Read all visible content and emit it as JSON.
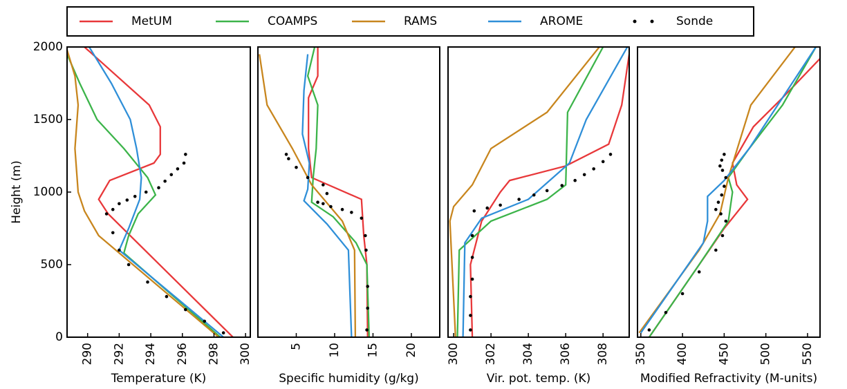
{
  "chart_data": [
    {
      "type": "line",
      "xlabel": "Temperature (K)",
      "ylabel": "Height (m)",
      "xlim": [
        288.7,
        300.3
      ],
      "xticks": [
        290,
        292,
        294,
        296,
        298,
        300
      ],
      "ylim": [
        0,
        2000
      ],
      "yticks": [
        0,
        500,
        1000,
        1500,
        2000
      ],
      "series": [
        {
          "name": "MetUM",
          "color": "#e8383a",
          "x": [
            299.2,
            291.3,
            290.7,
            291.4,
            294.2,
            294.6,
            294.6,
            293.9,
            289.8
          ],
          "y": [
            0,
            850,
            950,
            1080,
            1200,
            1260,
            1450,
            1600,
            2000
          ]
        },
        {
          "name": "COAMPS",
          "color": "#3cb44a",
          "x": [
            298.4,
            292.3,
            292.6,
            293.2,
            294.3,
            293.8,
            292.3,
            290.6,
            289.5,
            288.7
          ],
          "y": [
            0,
            580,
            700,
            850,
            980,
            1100,
            1300,
            1500,
            1750,
            1950
          ]
        },
        {
          "name": "RAMS",
          "color": "#c8861e",
          "x": [
            298.3,
            290.7,
            289.8,
            289.4,
            289.2,
            289.4,
            289.2,
            288.7
          ],
          "y": [
            0,
            700,
            870,
            1000,
            1300,
            1600,
            1800,
            1980
          ]
        },
        {
          "name": "AROME",
          "color": "#2f8fd8",
          "x": [
            298.6,
            292.0,
            292.6,
            293.3,
            293.4,
            293.1,
            292.7,
            291.5,
            290.1
          ],
          "y": [
            0,
            600,
            750,
            950,
            1100,
            1300,
            1500,
            1750,
            2000
          ]
        },
        {
          "name": "Sonde",
          "color": "#000000",
          "mode": "points",
          "x": [
            298.6,
            297.4,
            296.2,
            295.0,
            293.8,
            292.6,
            292.0,
            291.6,
            291.2,
            291.6,
            292.0,
            292.5,
            293.0,
            293.7,
            294.5,
            294.9,
            295.3,
            295.7,
            296.1,
            296.2
          ],
          "y": [
            30,
            110,
            190,
            280,
            380,
            500,
            600,
            720,
            850,
            880,
            920,
            945,
            970,
            1000,
            1030,
            1075,
            1120,
            1160,
            1200,
            1260
          ]
        }
      ]
    },
    {
      "type": "line",
      "xlabel": "Specific humidity (g/kg)",
      "xlim": [
        0,
        23.7
      ],
      "xticks": [
        5,
        10,
        15,
        20
      ],
      "ylim": [
        0,
        2000
      ],
      "series": [
        {
          "color": "#e8383a",
          "x": [
            14.3,
            14.2,
            13.8,
            13.5,
            7,
            6.6,
            6.6,
            7.8,
            7.8
          ],
          "y": [
            0,
            500,
            700,
            950,
            1100,
            1300,
            1650,
            1800,
            2000
          ]
        },
        {
          "color": "#3cb44a",
          "x": [
            14.5,
            14.2,
            12.8,
            9.8,
            7,
            7.2,
            7.6,
            7.8,
            6.5,
            7.4
          ],
          "y": [
            0,
            500,
            650,
            830,
            930,
            1100,
            1300,
            1600,
            1800,
            2000
          ]
        },
        {
          "color": "#c8861e",
          "x": [
            12.7,
            12.6,
            11,
            7,
            4.5,
            1.2,
            0.2
          ],
          "y": [
            0,
            600,
            800,
            1050,
            1300,
            1600,
            1950
          ]
        },
        {
          "color": "#2f8fd8",
          "x": [
            12.2,
            11.8,
            9,
            6,
            6.5,
            6.7,
            5.8,
            6,
            6.5
          ],
          "y": [
            0,
            600,
            780,
            940,
            1020,
            1200,
            1400,
            1700,
            1950
          ]
        },
        {
          "color": "#000000",
          "mode": "points",
          "x": [
            14.2,
            14.3,
            14.3,
            14.1,
            14,
            13.5,
            12.2,
            11,
            9.5,
            8.5,
            7.8,
            9,
            8.5,
            6.5,
            5,
            4,
            3.7
          ],
          "y": [
            50,
            200,
            350,
            600,
            700,
            820,
            860,
            880,
            900,
            920,
            930,
            990,
            1050,
            1100,
            1170,
            1230,
            1260
          ]
        }
      ]
    },
    {
      "type": "line",
      "xlabel": "Vir. pot. temp. (K)",
      "xlim": [
        299.7,
        309.4
      ],
      "xticks": [
        300,
        302,
        304,
        306,
        308
      ],
      "ylim": [
        0,
        2000
      ],
      "series": [
        {
          "color": "#e8383a",
          "x": [
            301,
            300.9,
            301.5,
            302.5,
            303,
            306,
            308.3,
            309,
            309.4
          ],
          "y": [
            0,
            500,
            800,
            1000,
            1080,
            1180,
            1330,
            1600,
            1950
          ]
        },
        {
          "color": "#3cb44a",
          "x": [
            300.2,
            300.3,
            302,
            305,
            306,
            306.1,
            308
          ],
          "y": [
            0,
            600,
            800,
            950,
            1050,
            1550,
            2000
          ]
        },
        {
          "color": "#c8861e",
          "x": [
            300.1,
            299.8,
            300,
            301,
            302,
            305,
            307.8
          ],
          "y": [
            0,
            800,
            900,
            1050,
            1300,
            1550,
            2000
          ]
        },
        {
          "color": "#2f8fd8",
          "x": [
            300.5,
            300.6,
            301.5,
            304,
            306.2,
            307.1,
            309.3
          ],
          "y": [
            0,
            650,
            820,
            950,
            1200,
            1500,
            2000
          ]
        },
        {
          "color": "#000000",
          "mode": "points",
          "x": [
            300.9,
            300.9,
            300.9,
            301,
            301,
            301,
            301.1,
            301.8,
            302.5,
            303.5,
            304.3,
            305,
            305.8,
            306.5,
            307,
            307.5,
            308,
            308.4
          ],
          "y": [
            50,
            150,
            280,
            400,
            550,
            700,
            870,
            890,
            910,
            950,
            980,
            1010,
            1045,
            1080,
            1120,
            1160,
            1210,
            1260
          ]
        }
      ]
    },
    {
      "type": "line",
      "xlabel": "Modified Refractivity (M-units)",
      "xlim": [
        346,
        565
      ],
      "xticks": [
        350,
        400,
        450,
        500,
        550
      ],
      "ylim": [
        0,
        2000
      ],
      "series": [
        {
          "color": "#e8383a",
          "x": [
            360,
            420,
            450,
            478,
            465,
            460,
            485,
            520,
            565
          ],
          "y": [
            0,
            500,
            750,
            950,
            1050,
            1200,
            1450,
            1650,
            1920
          ]
        },
        {
          "color": "#3cb44a",
          "x": [
            360,
            420,
            455,
            460,
            455,
            480,
            520,
            560
          ],
          "y": [
            0,
            500,
            800,
            1000,
            1100,
            1300,
            1600,
            2000
          ]
        },
        {
          "color": "#c8861e",
          "x": [
            348,
            420,
            445,
            455,
            482,
            535
          ],
          "y": [
            30,
            600,
            850,
            1100,
            1600,
            2000
          ]
        },
        {
          "color": "#2f8fd8",
          "x": [
            350,
            425,
            430,
            430,
            450,
            480,
            560
          ],
          "y": [
            30,
            650,
            800,
            970,
            1080,
            1300,
            2000
          ]
        },
        {
          "color": "#000000",
          "mode": "points",
          "x": [
            360,
            380,
            400,
            420,
            440,
            448,
            452,
            446,
            440,
            443,
            447,
            450,
            452,
            448,
            445,
            447,
            450
          ],
          "y": [
            50,
            170,
            300,
            450,
            600,
            700,
            800,
            850,
            880,
            930,
            980,
            1040,
            1100,
            1150,
            1180,
            1220,
            1260
          ]
        }
      ]
    }
  ]
}
